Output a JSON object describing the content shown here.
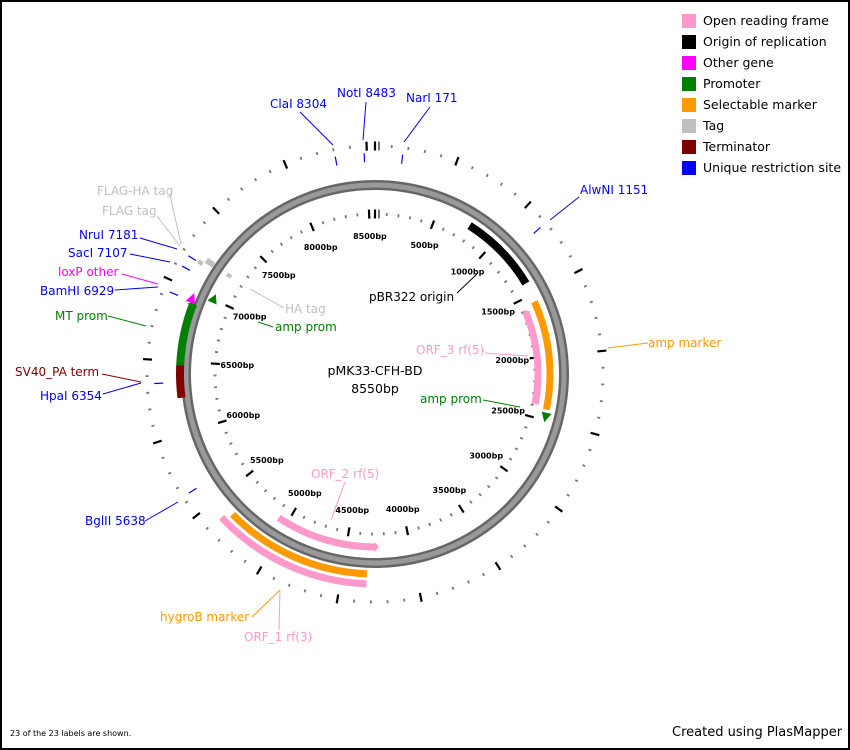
{
  "plasmid": {
    "name": "pMK33-CFH-BD",
    "length_label": "8550bp",
    "length_bp": 8550
  },
  "legend": [
    {
      "label": "Open reading frame",
      "color": "#ff99cc"
    },
    {
      "label": "Origin of replication",
      "color": "#000000"
    },
    {
      "label": "Other gene",
      "color": "#ff00ff"
    },
    {
      "label": "Promoter",
      "color": "#008000"
    },
    {
      "label": "Selectable marker",
      "color": "#ff9900"
    },
    {
      "label": "Tag",
      "color": "#c0c0c0"
    },
    {
      "label": "Terminator",
      "color": "#800000"
    },
    {
      "label": "Unique restriction site",
      "color": "#0000ff"
    }
  ],
  "features": [
    {
      "name": "pBR322 origin",
      "type": "origin",
      "start": 772,
      "end": 1402,
      "color": "#000000"
    },
    {
      "name": "amp marker",
      "type": "marker",
      "start": 1558,
      "end": 2416,
      "color": "#ff9900"
    },
    {
      "name": "ORF_3 rf(5)",
      "type": "orf",
      "start": 1620,
      "end": 2390,
      "color": "#ff99cc"
    },
    {
      "name": "amp prom",
      "type": "promoter",
      "start": 2450,
      "end": 2490,
      "color": "#008000"
    },
    {
      "name": "ORF_2 rf(5)",
      "type": "orf",
      "start": 4275,
      "end": 5078,
      "color": "#ff99cc"
    },
    {
      "name": "hygroB marker",
      "type": "marker",
      "start": 4330,
      "end": 5354,
      "color": "#ff9900"
    },
    {
      "name": "ORF_1 rf(3)",
      "type": "orf",
      "start": 4330,
      "end": 5390,
      "color": "#ff99cc"
    },
    {
      "name": "SV40_PA term",
      "type": "terminator",
      "start": 6246,
      "end": 6474,
      "color": "#800000"
    },
    {
      "name": "MT prom",
      "type": "promoter",
      "start": 6474,
      "end": 6900,
      "color": "#008000"
    },
    {
      "name": "loxP other",
      "type": "other",
      "start": 6925,
      "end": 6960,
      "color": "#ff00ff"
    },
    {
      "name": "amp prom",
      "type": "promoter",
      "start": 6985,
      "end": 7020,
      "color": "#008000"
    },
    {
      "name": "HA tag",
      "type": "tag",
      "start": 7205,
      "end": 7235,
      "color": "#c0c0c0"
    },
    {
      "name": "FLAG tag",
      "type": "tag",
      "start": 7200,
      "end": 7240,
      "color": "#c0c0c0"
    },
    {
      "name": "FLAG-HA tag",
      "type": "tag",
      "start": 7170,
      "end": 7200,
      "color": "#c0c0c0"
    }
  ],
  "sites": [
    {
      "name": "NarI",
      "pos": 171
    },
    {
      "name": "AlwNI",
      "pos": 1151
    },
    {
      "name": "BglII",
      "pos": 5638
    },
    {
      "name": "HpaI",
      "pos": 6354
    },
    {
      "name": "BamHI",
      "pos": 6929
    },
    {
      "name": "SacI",
      "pos": 7107
    },
    {
      "name": "NruI",
      "pos": 7181
    },
    {
      "name": "ClaI",
      "pos": 8304
    },
    {
      "name": "NotI",
      "pos": 8483
    }
  ],
  "labels": [
    {
      "text": "ClaI 8304",
      "color": "#0000ff"
    },
    {
      "text": "NotI 8483",
      "color": "#0000ff"
    },
    {
      "text": "NarI 171",
      "color": "#0000ff"
    },
    {
      "text": "AlwNI 1151",
      "color": "#0000ff"
    },
    {
      "text": "amp marker",
      "color": "#ff9900"
    },
    {
      "text": "pBR322 origin",
      "color": "#000000"
    },
    {
      "text": "ORF_3 rf(5)",
      "color": "#ff99cc"
    },
    {
      "text": "amp prom",
      "color": "#008000"
    },
    {
      "text": "HA tag",
      "color": "#c0c0c0"
    },
    {
      "text": "amp prom",
      "color": "#008000"
    },
    {
      "text": "ORF_2 rf(5)",
      "color": "#ff99cc"
    },
    {
      "text": "hygroB marker",
      "color": "#ff9900"
    },
    {
      "text": "ORF_1 rf(3)",
      "color": "#ff99cc"
    },
    {
      "text": "BglII 5638",
      "color": "#0000ff"
    },
    {
      "text": "HpaI 6354",
      "color": "#0000ff"
    },
    {
      "text": "SV40_PA term",
      "color": "#800000"
    },
    {
      "text": "MT prom",
      "color": "#008000"
    },
    {
      "text": "BamHI 6929",
      "color": "#0000ff"
    },
    {
      "text": "loxP other",
      "color": "#ff00ff"
    },
    {
      "text": "SacI 7107",
      "color": "#0000ff"
    },
    {
      "text": "NruI 7181",
      "color": "#0000ff"
    },
    {
      "text": "FLAG tag",
      "color": "#c0c0c0"
    },
    {
      "text": "FLAG-HA tag",
      "color": "#c0c0c0"
    }
  ],
  "ruler": {
    "major_step_bp": 500,
    "minor_step_bp": 100,
    "unit": "bp"
  },
  "footer": {
    "labels_note": "23 of the 23 labels are shown.",
    "credit": "Created using PlasMapper"
  }
}
